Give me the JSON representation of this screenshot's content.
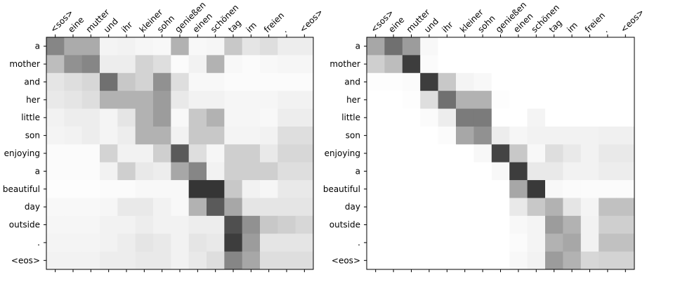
{
  "chart_data": [
    {
      "type": "heatmap",
      "title": "",
      "xlabel": "",
      "ylabel": "",
      "x_tick_position": "top",
      "colormap": "greys",
      "value_range": [
        0,
        1
      ],
      "x_labels": [
        "<sos>",
        "eine",
        "mutter",
        "und",
        "ihr",
        "kleiner",
        "sohn",
        "genießen",
        "einen",
        "schönen",
        "tag",
        "im",
        "freien",
        ".",
        "<eos>"
      ],
      "y_labels": [
        "a",
        "mother",
        "and",
        "her",
        "little",
        "son",
        "enjoying",
        "a",
        "beautiful",
        "day",
        "outside",
        ".",
        "<eos>"
      ],
      "values": [
        [
          0.55,
          0.38,
          0.38,
          0.05,
          0.06,
          0.04,
          0.03,
          0.35,
          0.03,
          0.04,
          0.25,
          0.12,
          0.15,
          0.08,
          0.08
        ],
        [
          0.3,
          0.5,
          0.55,
          0.08,
          0.08,
          0.2,
          0.15,
          0.02,
          0.06,
          0.35,
          0.03,
          0.02,
          0.03,
          0.04,
          0.04
        ],
        [
          0.12,
          0.15,
          0.18,
          0.65,
          0.25,
          0.2,
          0.5,
          0.15,
          0.03,
          0.03,
          0.02,
          0.02,
          0.02,
          0.02,
          0.02
        ],
        [
          0.1,
          0.12,
          0.15,
          0.35,
          0.35,
          0.35,
          0.45,
          0.1,
          0.06,
          0.06,
          0.04,
          0.04,
          0.04,
          0.06,
          0.06
        ],
        [
          0.06,
          0.08,
          0.08,
          0.05,
          0.12,
          0.35,
          0.45,
          0.03,
          0.25,
          0.35,
          0.04,
          0.04,
          0.03,
          0.08,
          0.08
        ],
        [
          0.05,
          0.06,
          0.08,
          0.05,
          0.08,
          0.35,
          0.35,
          0.06,
          0.25,
          0.25,
          0.05,
          0.05,
          0.06,
          0.15,
          0.15
        ],
        [
          0.02,
          0.02,
          0.02,
          0.2,
          0.06,
          0.06,
          0.22,
          0.75,
          0.15,
          0.04,
          0.22,
          0.22,
          0.1,
          0.18,
          0.18
        ],
        [
          0.02,
          0.02,
          0.02,
          0.06,
          0.22,
          0.1,
          0.08,
          0.4,
          0.55,
          0.06,
          0.22,
          0.22,
          0.22,
          0.15,
          0.15
        ],
        [
          0.01,
          0.01,
          0.01,
          0.02,
          0.02,
          0.03,
          0.03,
          0.03,
          0.92,
          0.92,
          0.25,
          0.06,
          0.04,
          0.1,
          0.1
        ],
        [
          0.03,
          0.03,
          0.03,
          0.04,
          0.1,
          0.1,
          0.06,
          0.03,
          0.35,
          0.75,
          0.4,
          0.12,
          0.12,
          0.12,
          0.12
        ],
        [
          0.04,
          0.04,
          0.04,
          0.06,
          0.06,
          0.08,
          0.06,
          0.06,
          0.08,
          0.08,
          0.8,
          0.5,
          0.25,
          0.22,
          0.18
        ],
        [
          0.05,
          0.05,
          0.05,
          0.06,
          0.08,
          0.12,
          0.1,
          0.06,
          0.12,
          0.1,
          0.88,
          0.45,
          0.12,
          0.12,
          0.12
        ],
        [
          0.06,
          0.06,
          0.06,
          0.08,
          0.08,
          0.1,
          0.1,
          0.06,
          0.1,
          0.15,
          0.55,
          0.4,
          0.15,
          0.15,
          0.15
        ]
      ]
    },
    {
      "type": "heatmap",
      "title": "",
      "xlabel": "",
      "ylabel": "",
      "x_tick_position": "top",
      "colormap": "greys",
      "value_range": [
        0,
        1
      ],
      "x_labels": [
        "<sos>",
        "eine",
        "mutter",
        "und",
        "ihr",
        "kleiner",
        "sohn",
        "genießen",
        "einen",
        "schönen",
        "tag",
        "im",
        "freien",
        ".",
        "<eos>"
      ],
      "y_labels": [
        "a",
        "mother",
        "and",
        "her",
        "little",
        "son",
        "enjoying",
        "a",
        "beautiful",
        "day",
        "outside",
        ".",
        "<eos>"
      ],
      "values": [
        [
          0.4,
          0.65,
          0.45,
          0.03,
          0.0,
          0.0,
          0.0,
          0.0,
          0.0,
          0.0,
          0.0,
          0.0,
          0.0,
          0.0,
          0.0
        ],
        [
          0.22,
          0.3,
          0.88,
          0.02,
          0.0,
          0.0,
          0.0,
          0.0,
          0.0,
          0.0,
          0.0,
          0.0,
          0.0,
          0.0,
          0.0
        ],
        [
          0.01,
          0.01,
          0.02,
          0.88,
          0.25,
          0.05,
          0.03,
          0.0,
          0.0,
          0.0,
          0.0,
          0.0,
          0.0,
          0.0,
          0.0
        ],
        [
          0.0,
          0.0,
          0.01,
          0.15,
          0.65,
          0.35,
          0.35,
          0.01,
          0.0,
          0.0,
          0.0,
          0.0,
          0.0,
          0.0,
          0.0
        ],
        [
          0.0,
          0.0,
          0.0,
          0.02,
          0.08,
          0.6,
          0.6,
          0.0,
          0.0,
          0.05,
          0.0,
          0.0,
          0.0,
          0.0,
          0.0
        ],
        [
          0.0,
          0.0,
          0.0,
          0.0,
          0.02,
          0.4,
          0.5,
          0.08,
          0.04,
          0.06,
          0.06,
          0.06,
          0.06,
          0.07,
          0.07
        ],
        [
          0.0,
          0.0,
          0.0,
          0.0,
          0.0,
          0.0,
          0.03,
          0.85,
          0.25,
          0.03,
          0.15,
          0.1,
          0.06,
          0.1,
          0.1
        ],
        [
          0.0,
          0.0,
          0.0,
          0.0,
          0.0,
          0.0,
          0.0,
          0.03,
          0.88,
          0.1,
          0.1,
          0.06,
          0.06,
          0.08,
          0.08
        ],
        [
          0.0,
          0.0,
          0.0,
          0.0,
          0.0,
          0.0,
          0.0,
          0.0,
          0.4,
          0.9,
          0.03,
          0.02,
          0.02,
          0.02,
          0.02
        ],
        [
          0.0,
          0.0,
          0.0,
          0.0,
          0.0,
          0.0,
          0.0,
          0.0,
          0.1,
          0.25,
          0.35,
          0.12,
          0.05,
          0.28,
          0.28
        ],
        [
          0.0,
          0.0,
          0.0,
          0.0,
          0.0,
          0.0,
          0.0,
          0.0,
          0.03,
          0.05,
          0.45,
          0.35,
          0.06,
          0.22,
          0.22
        ],
        [
          0.0,
          0.0,
          0.0,
          0.0,
          0.0,
          0.0,
          0.0,
          0.0,
          0.02,
          0.05,
          0.35,
          0.4,
          0.06,
          0.28,
          0.28
        ],
        [
          0.0,
          0.0,
          0.0,
          0.0,
          0.0,
          0.0,
          0.0,
          0.0,
          0.03,
          0.06,
          0.45,
          0.35,
          0.18,
          0.2,
          0.2
        ]
      ]
    }
  ]
}
